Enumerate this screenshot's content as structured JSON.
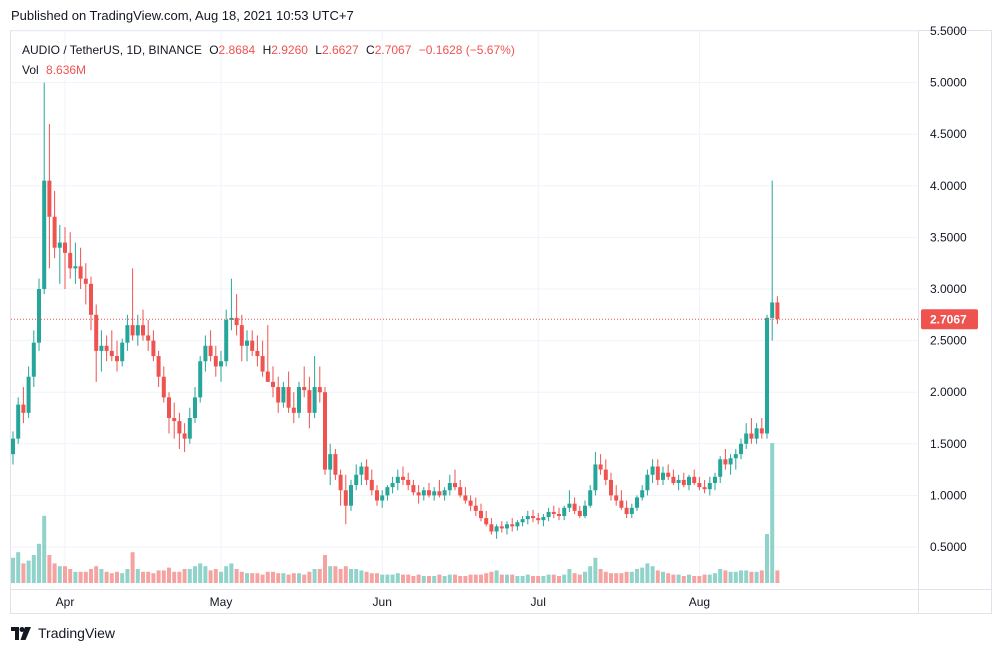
{
  "header": {
    "published": "Published on TradingView.com, Aug 18, 2021 10:53 UTC+7"
  },
  "legend": {
    "symbol": "AUDIO / TetherUS, 1D, BINANCE",
    "open_label": "O",
    "open": "2.8684",
    "high_label": "H",
    "high": "2.9260",
    "low_label": "L",
    "low": "2.6627",
    "close_label": "C",
    "close": "2.7067",
    "change": "−0.1628 (−5.67%)",
    "vol_label": "Vol",
    "vol": "8.636M"
  },
  "footer": {
    "brand": "TradingView"
  },
  "colors": {
    "up": "#26a69a",
    "down": "#ef5350",
    "up_vol": "#8fd3cb",
    "down_vol": "#f5a3a1",
    "grid": "#f0f3fa",
    "text": "#131722"
  },
  "chart_data": {
    "type": "candlestick",
    "ylim": [
      0.1,
      5.55
    ],
    "y_ticks": [
      "0.5000",
      "1.0000",
      "1.5000",
      "2.0000",
      "2.5000",
      "3.0000",
      "3.5000",
      "4.0000",
      "4.5000",
      "5.0000",
      "5.5000"
    ],
    "y_tick_values": [
      0.5,
      1.0,
      1.5,
      2.0,
      2.5,
      3.0,
      3.5,
      4.0,
      4.5,
      5.0,
      5.5
    ],
    "x_ticks": [
      {
        "label": "Apr",
        "day": 10
      },
      {
        "label": "May",
        "day": 40
      },
      {
        "label": "Jun",
        "day": 71
      },
      {
        "label": "Jul",
        "day": 101
      },
      {
        "label": "Aug",
        "day": 132
      }
    ],
    "last_price": 2.7067,
    "last_price_label": "2.7067",
    "candles": [
      [
        1.4,
        1.62,
        1.3,
        1.55,
        18
      ],
      [
        1.55,
        1.95,
        1.5,
        1.88,
        22
      ],
      [
        1.88,
        2.05,
        1.7,
        1.8,
        14
      ],
      [
        1.8,
        2.25,
        1.75,
        2.15,
        16
      ],
      [
        2.15,
        2.6,
        2.05,
        2.48,
        20
      ],
      [
        2.48,
        3.1,
        2.4,
        3.0,
        28
      ],
      [
        3.0,
        5.0,
        2.95,
        4.05,
        48
      ],
      [
        4.05,
        4.6,
        3.2,
        3.7,
        20
      ],
      [
        3.7,
        3.95,
        3.3,
        3.4,
        14
      ],
      [
        3.4,
        3.62,
        3.05,
        3.45,
        12
      ],
      [
        3.45,
        3.6,
        3.0,
        3.35,
        12
      ],
      [
        3.35,
        3.55,
        3.1,
        3.2,
        10
      ],
      [
        3.2,
        3.45,
        3.05,
        3.22,
        8
      ],
      [
        3.22,
        3.4,
        3.0,
        3.1,
        8
      ],
      [
        3.1,
        3.25,
        2.85,
        3.05,
        8
      ],
      [
        3.05,
        3.12,
        2.6,
        2.75,
        10
      ],
      [
        2.75,
        2.85,
        2.1,
        2.4,
        12
      ],
      [
        2.4,
        2.6,
        2.2,
        2.45,
        10
      ],
      [
        2.45,
        2.55,
        2.3,
        2.4,
        8
      ],
      [
        2.4,
        2.6,
        2.3,
        2.35,
        7
      ],
      [
        2.35,
        2.5,
        2.2,
        2.3,
        8
      ],
      [
        2.3,
        2.52,
        2.25,
        2.48,
        7
      ],
      [
        2.48,
        2.75,
        2.4,
        2.65,
        10
      ],
      [
        2.65,
        3.2,
        2.5,
        2.55,
        22
      ],
      [
        2.55,
        2.75,
        2.45,
        2.65,
        10
      ],
      [
        2.65,
        2.8,
        2.5,
        2.55,
        8
      ],
      [
        2.55,
        2.7,
        2.4,
        2.5,
        8
      ],
      [
        2.5,
        2.6,
        2.3,
        2.35,
        7
      ],
      [
        2.35,
        2.4,
        2.05,
        2.15,
        9
      ],
      [
        2.15,
        2.25,
        1.9,
        1.95,
        9
      ],
      [
        1.95,
        2.0,
        1.6,
        1.75,
        11
      ],
      [
        1.75,
        1.9,
        1.55,
        1.72,
        8
      ],
      [
        1.72,
        1.8,
        1.45,
        1.6,
        8
      ],
      [
        1.6,
        1.7,
        1.42,
        1.55,
        10
      ],
      [
        1.55,
        1.85,
        1.5,
        1.75,
        10
      ],
      [
        1.75,
        2.05,
        1.7,
        1.95,
        12
      ],
      [
        1.95,
        2.35,
        1.9,
        2.3,
        14
      ],
      [
        2.3,
        2.55,
        2.2,
        2.45,
        12
      ],
      [
        2.45,
        2.6,
        2.3,
        2.35,
        9
      ],
      [
        2.35,
        2.45,
        2.15,
        2.25,
        10
      ],
      [
        2.25,
        2.4,
        2.1,
        2.3,
        8
      ],
      [
        2.3,
        2.8,
        2.25,
        2.7,
        12
      ],
      [
        2.7,
        3.1,
        2.6,
        2.72,
        14
      ],
      [
        2.72,
        2.95,
        2.55,
        2.65,
        10
      ],
      [
        2.65,
        2.75,
        2.3,
        2.45,
        8
      ],
      [
        2.45,
        2.6,
        2.3,
        2.5,
        7
      ],
      [
        2.5,
        2.6,
        2.35,
        2.4,
        7
      ],
      [
        2.4,
        2.55,
        2.25,
        2.35,
        7
      ],
      [
        2.35,
        2.5,
        2.15,
        2.2,
        6
      ],
      [
        2.2,
        2.65,
        2.1,
        2.1,
        8
      ],
      [
        2.1,
        2.25,
        1.95,
        2.05,
        8
      ],
      [
        2.05,
        2.15,
        1.8,
        1.9,
        7
      ],
      [
        1.9,
        2.1,
        1.85,
        2.05,
        7
      ],
      [
        2.05,
        2.2,
        1.8,
        1.85,
        6
      ],
      [
        1.85,
        2.0,
        1.7,
        1.8,
        7
      ],
      [
        1.8,
        2.1,
        1.75,
        2.05,
        7
      ],
      [
        2.05,
        2.25,
        1.95,
        2.02,
        6
      ],
      [
        2.02,
        2.15,
        1.65,
        1.8,
        8
      ],
      [
        1.8,
        2.35,
        1.75,
        2.05,
        10
      ],
      [
        2.05,
        2.25,
        1.9,
        2.0,
        10
      ],
      [
        2.0,
        2.05,
        1.2,
        1.25,
        20
      ],
      [
        1.25,
        1.5,
        1.1,
        1.4,
        12
      ],
      [
        1.4,
        1.45,
        1.15,
        1.2,
        12
      ],
      [
        1.2,
        1.25,
        0.9,
        1.05,
        10
      ],
      [
        1.05,
        1.2,
        0.72,
        0.9,
        12
      ],
      [
        0.9,
        1.15,
        0.85,
        1.1,
        10
      ],
      [
        1.1,
        1.3,
        1.05,
        1.2,
        10
      ],
      [
        1.2,
        1.32,
        1.1,
        1.28,
        9
      ],
      [
        1.28,
        1.35,
        1.1,
        1.15,
        8
      ],
      [
        1.15,
        1.25,
        1.0,
        1.05,
        7
      ],
      [
        1.05,
        1.1,
        0.9,
        0.95,
        7
      ],
      [
        0.95,
        1.05,
        0.88,
        1.0,
        6
      ],
      [
        1.0,
        1.1,
        0.95,
        1.08,
        6
      ],
      [
        1.08,
        1.18,
        1.02,
        1.12,
        6
      ],
      [
        1.12,
        1.25,
        1.05,
        1.18,
        7
      ],
      [
        1.18,
        1.28,
        1.1,
        1.15,
        6
      ],
      [
        1.15,
        1.22,
        1.05,
        1.1,
        6
      ],
      [
        1.1,
        1.15,
        1.0,
        1.03,
        5
      ],
      [
        1.03,
        1.1,
        0.92,
        1.0,
        6
      ],
      [
        1.0,
        1.08,
        0.95,
        1.05,
        5
      ],
      [
        1.05,
        1.12,
        0.98,
        1.0,
        5
      ],
      [
        1.0,
        1.08,
        0.95,
        1.04,
        5
      ],
      [
        1.04,
        1.15,
        0.98,
        1.0,
        6
      ],
      [
        1.0,
        1.08,
        0.95,
        1.05,
        5
      ],
      [
        1.05,
        1.2,
        1.0,
        1.12,
        6
      ],
      [
        1.12,
        1.25,
        1.05,
        1.08,
        6
      ],
      [
        1.08,
        1.15,
        0.98,
        1.0,
        5
      ],
      [
        1.0,
        1.08,
        0.92,
        0.95,
        5
      ],
      [
        0.95,
        1.0,
        0.85,
        0.9,
        6
      ],
      [
        0.9,
        0.98,
        0.8,
        0.85,
        6
      ],
      [
        0.85,
        0.92,
        0.75,
        0.78,
        6
      ],
      [
        0.78,
        0.85,
        0.7,
        0.72,
        7
      ],
      [
        0.72,
        0.78,
        0.62,
        0.65,
        8
      ],
      [
        0.65,
        0.72,
        0.58,
        0.7,
        9
      ],
      [
        0.7,
        0.75,
        0.64,
        0.68,
        6
      ],
      [
        0.68,
        0.75,
        0.62,
        0.72,
        6
      ],
      [
        0.72,
        0.78,
        0.65,
        0.7,
        6
      ],
      [
        0.7,
        0.76,
        0.66,
        0.74,
        5
      ],
      [
        0.74,
        0.8,
        0.7,
        0.77,
        5
      ],
      [
        0.77,
        0.85,
        0.72,
        0.8,
        6
      ],
      [
        0.8,
        0.86,
        0.74,
        0.78,
        5
      ],
      [
        0.78,
        0.83,
        0.72,
        0.76,
        5
      ],
      [
        0.76,
        0.82,
        0.7,
        0.79,
        5
      ],
      [
        0.79,
        0.88,
        0.75,
        0.84,
        6
      ],
      [
        0.84,
        0.9,
        0.78,
        0.82,
        6
      ],
      [
        0.82,
        0.88,
        0.76,
        0.8,
        5
      ],
      [
        0.8,
        0.9,
        0.76,
        0.88,
        6
      ],
      [
        0.88,
        1.05,
        0.84,
        0.92,
        10
      ],
      [
        0.92,
        0.98,
        0.82,
        0.85,
        7
      ],
      [
        0.85,
        0.9,
        0.78,
        0.8,
        6
      ],
      [
        0.8,
        0.95,
        0.78,
        0.9,
        8
      ],
      [
        0.9,
        1.1,
        0.88,
        1.05,
        12
      ],
      [
        1.05,
        1.42,
        1.0,
        1.3,
        18
      ],
      [
        1.3,
        1.4,
        1.2,
        1.25,
        10
      ],
      [
        1.25,
        1.35,
        1.1,
        1.15,
        8
      ],
      [
        1.15,
        1.22,
        0.95,
        1.0,
        7
      ],
      [
        1.0,
        1.1,
        0.9,
        0.95,
        7
      ],
      [
        0.95,
        1.05,
        0.86,
        0.88,
        7
      ],
      [
        0.88,
        0.95,
        0.78,
        0.82,
        8
      ],
      [
        0.82,
        0.92,
        0.78,
        0.88,
        8
      ],
      [
        0.88,
        1.0,
        0.85,
        0.98,
        10
      ],
      [
        0.98,
        1.1,
        0.95,
        1.05,
        11
      ],
      [
        1.05,
        1.25,
        1.0,
        1.2,
        14
      ],
      [
        1.2,
        1.35,
        1.12,
        1.28,
        12
      ],
      [
        1.28,
        1.35,
        1.1,
        1.15,
        9
      ],
      [
        1.15,
        1.28,
        1.1,
        1.22,
        8
      ],
      [
        1.22,
        1.3,
        1.15,
        1.18,
        7
      ],
      [
        1.18,
        1.25,
        1.1,
        1.12,
        6
      ],
      [
        1.12,
        1.2,
        1.05,
        1.15,
        6
      ],
      [
        1.15,
        1.22,
        1.08,
        1.1,
        5
      ],
      [
        1.1,
        1.2,
        1.05,
        1.18,
        6
      ],
      [
        1.18,
        1.25,
        1.1,
        1.12,
        5
      ],
      [
        1.12,
        1.18,
        1.05,
        1.08,
        5
      ],
      [
        1.08,
        1.15,
        1.02,
        1.06,
        6
      ],
      [
        1.06,
        1.18,
        1.0,
        1.12,
        6
      ],
      [
        1.12,
        1.22,
        1.05,
        1.18,
        7
      ],
      [
        1.18,
        1.38,
        1.12,
        1.35,
        10
      ],
      [
        1.35,
        1.45,
        1.25,
        1.3,
        9
      ],
      [
        1.3,
        1.4,
        1.2,
        1.36,
        8
      ],
      [
        1.36,
        1.45,
        1.25,
        1.4,
        8
      ],
      [
        1.4,
        1.55,
        1.35,
        1.5,
        9
      ],
      [
        1.5,
        1.7,
        1.45,
        1.6,
        9
      ],
      [
        1.6,
        1.75,
        1.5,
        1.55,
        8
      ],
      [
        1.55,
        1.7,
        1.5,
        1.65,
        8
      ],
      [
        1.65,
        1.75,
        1.55,
        1.6,
        9
      ],
      [
        1.6,
        2.75,
        1.55,
        2.72,
        35
      ],
      [
        2.72,
        4.05,
        2.5,
        2.87,
        100
      ],
      [
        2.87,
        2.93,
        2.66,
        2.71,
        9
      ]
    ]
  }
}
